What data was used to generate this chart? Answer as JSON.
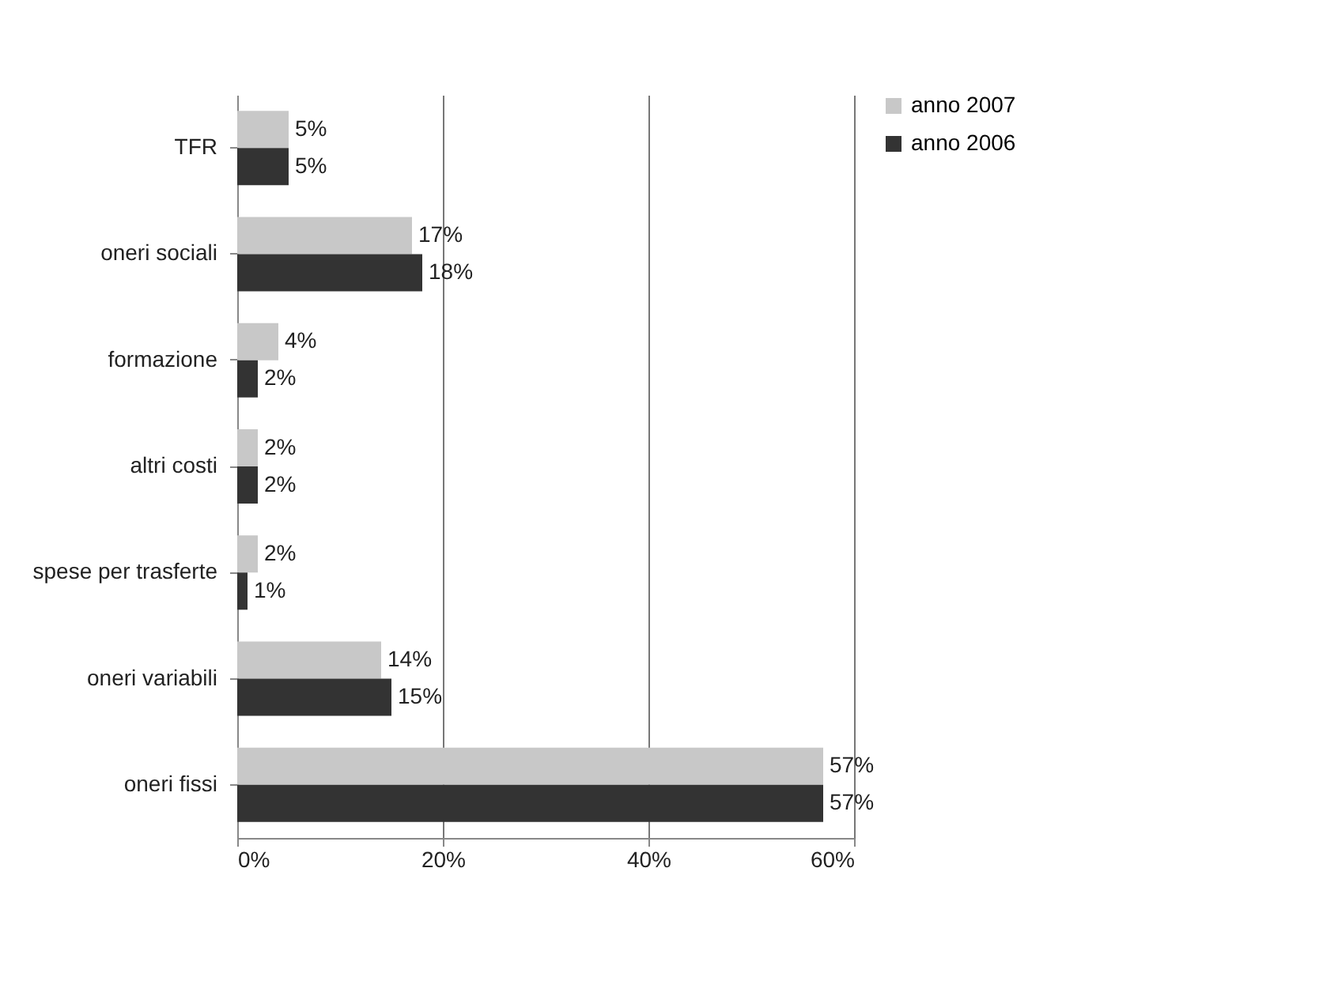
{
  "chart_data": {
    "type": "bar",
    "orientation": "horizontal",
    "categories": [
      "TFR",
      "oneri sociali",
      "formazione",
      "altri costi",
      "spese per trasferte",
      "oneri variabili",
      "oneri fissi"
    ],
    "series": [
      {
        "name": "anno 2007",
        "color": "#c8c8c8",
        "values": [
          5,
          17,
          4,
          2,
          2,
          14,
          57
        ],
        "value_labels": [
          "5%",
          "17%",
          "4%",
          "2%",
          "2%",
          "14%",
          "57%"
        ]
      },
      {
        "name": "anno 2006",
        "color": "#333333",
        "values": [
          5,
          18,
          2,
          2,
          1,
          15,
          57
        ],
        "value_labels": [
          "5%",
          "18%",
          "2%",
          "2%",
          "1%",
          "15%",
          "57%"
        ]
      }
    ],
    "xlim": [
      0,
      60
    ],
    "xticks": [
      {
        "value": 0,
        "label": "0%"
      },
      {
        "value": 20,
        "label": "20%"
      },
      {
        "value": 40,
        "label": "40%"
      },
      {
        "value": 60,
        "label": "60%"
      }
    ],
    "grid": "x",
    "legend": "right"
  }
}
